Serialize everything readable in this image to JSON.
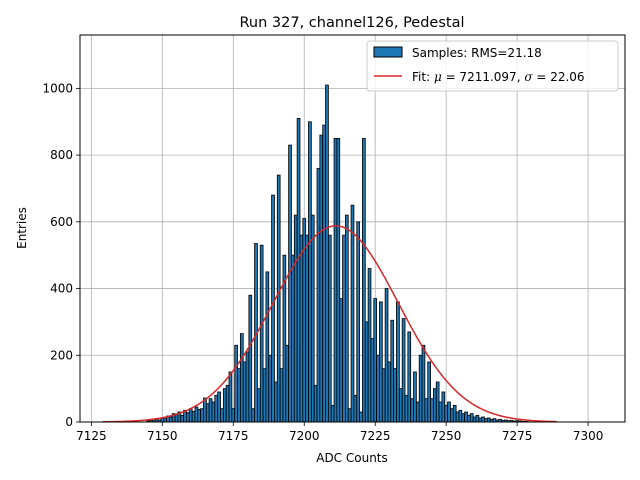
{
  "chart_data": {
    "type": "bar",
    "title": "Run 327, channel126, Pedestal",
    "xlabel": "ADC Counts",
    "ylabel": "Entries",
    "xlim": [
      7121,
      7313
    ],
    "ylim": [
      0,
      1160
    ],
    "xticks": [
      7125,
      7150,
      7175,
      7200,
      7225,
      7250,
      7275,
      7300
    ],
    "yticks": [
      0,
      200,
      400,
      600,
      800,
      1000
    ],
    "grid": true,
    "legend_position": "upper-right",
    "bar_color": "#1f77b4",
    "fit_color": "#d62728",
    "legend": {
      "hist_label": "Samples: RMS=21.18",
      "fit_label_prefix": "Fit: ",
      "fit_label_mu": "μ",
      "fit_label_mid": " = 7211.097, ",
      "fit_label_sigma": "σ",
      "fit_label_suffix": " = 22.06"
    },
    "fit": {
      "mu": 7211.097,
      "sigma": 22.06,
      "amplitude": 588,
      "x_range": [
        7129,
        7289
      ]
    },
    "histogram": {
      "x": [
        7145,
        7146,
        7147,
        7148,
        7149,
        7150,
        7151,
        7152,
        7153,
        7154,
        7155,
        7156,
        7157,
        7158,
        7159,
        7160,
        7161,
        7162,
        7163,
        7164,
        7165,
        7166,
        7167,
        7168,
        7169,
        7170,
        7171,
        7172,
        7173,
        7174,
        7175,
        7176,
        7177,
        7178,
        7179,
        7180,
        7181,
        7182,
        7183,
        7184,
        7185,
        7186,
        7187,
        7188,
        7189,
        7190,
        7191,
        7192,
        7193,
        7194,
        7195,
        7196,
        7197,
        7198,
        7199,
        7200,
        7201,
        7202,
        7203,
        7204,
        7205,
        7206,
        7207,
        7208,
        7209,
        7210,
        7211,
        7212,
        7213,
        7214,
        7215,
        7216,
        7217,
        7218,
        7219,
        7220,
        7221,
        7222,
        7223,
        7224,
        7225,
        7226,
        7227,
        7228,
        7229,
        7230,
        7231,
        7232,
        7233,
        7234,
        7235,
        7236,
        7237,
        7238,
        7239,
        7240,
        7241,
        7242,
        7243,
        7244,
        7245,
        7246,
        7247,
        7248,
        7249,
        7250,
        7251,
        7252,
        7253,
        7254,
        7255,
        7256,
        7257,
        7258,
        7259,
        7260,
        7261,
        7262,
        7263,
        7264,
        7265,
        7266,
        7267,
        7268,
        7269,
        7270,
        7271,
        7272,
        7273,
        7274,
        7275,
        7276,
        7277,
        7278,
        7279
      ],
      "values": [
        3,
        5,
        4,
        8,
        6,
        12,
        10,
        18,
        15,
        25,
        22,
        30,
        20,
        35,
        28,
        40,
        32,
        45,
        38,
        40,
        72,
        55,
        70,
        60,
        80,
        90,
        40,
        100,
        110,
        150,
        40,
        230,
        160,
        265,
        180,
        210,
        380,
        40,
        535,
        100,
        530,
        160,
        450,
        200,
        680,
        120,
        740,
        160,
        500,
        230,
        830,
        500,
        620,
        910,
        560,
        610,
        560,
        900,
        620,
        110,
        760,
        860,
        890,
        1010,
        560,
        50,
        850,
        850,
        370,
        560,
        620,
        40,
        650,
        80,
        600,
        30,
        850,
        300,
        460,
        250,
        370,
        200,
        360,
        160,
        400,
        180,
        305,
        160,
        360,
        100,
        310,
        80,
        270,
        70,
        150,
        60,
        200,
        230,
        70,
        180,
        70,
        100,
        120,
        60,
        90,
        50,
        60,
        40,
        50,
        30,
        35,
        25,
        30,
        20,
        25,
        15,
        20,
        12,
        15,
        10,
        12,
        8,
        10,
        6,
        8,
        5,
        6,
        4,
        5,
        3,
        4,
        3,
        2,
        2,
        1
      ]
    }
  }
}
